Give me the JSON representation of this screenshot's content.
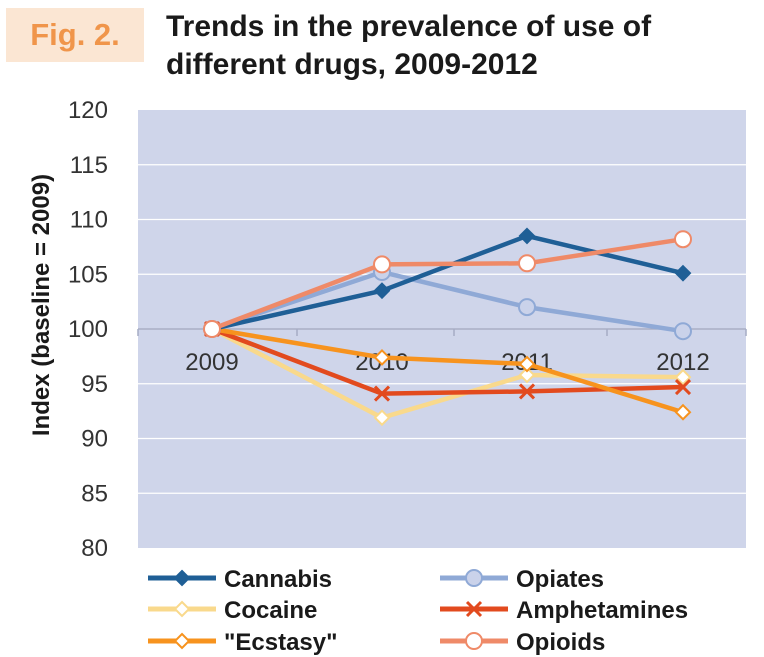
{
  "figure": {
    "label": "Fig. 2.",
    "title_line1": "Trends in the prevalence of use of",
    "title_line2": "different drugs, 2009-2012"
  },
  "chart_data": {
    "type": "line",
    "title": "Trends in the prevalence of use of different drugs, 2009-2012",
    "xlabel": "",
    "ylabel": "Index (baseline = 2009)",
    "categories": [
      "2009",
      "2010",
      "2011",
      "2012"
    ],
    "ylim": [
      80,
      120
    ],
    "yticks": [
      80,
      85,
      90,
      95,
      100,
      105,
      110,
      115,
      120
    ],
    "grid": true,
    "legend_position": "bottom",
    "series": [
      {
        "name": "Cannabis",
        "values": [
          100,
          103.5,
          108.5,
          105.1
        ],
        "color": "#1f5f96",
        "marker": "diamond"
      },
      {
        "name": "Opiates",
        "values": [
          100,
          105.2,
          102,
          99.8
        ],
        "color": "#8fa9d6",
        "marker": "circle"
      },
      {
        "name": "Cocaine",
        "values": [
          100,
          91.9,
          95.8,
          95.6
        ],
        "color": "#f9d98c",
        "marker": "diamond-open"
      },
      {
        "name": "Amphetamines",
        "values": [
          100,
          94.1,
          94.3,
          94.7
        ],
        "color": "#e24a1e",
        "marker": "x"
      },
      {
        "name": "\"Ecstasy\"",
        "values": [
          100,
          97.4,
          96.8,
          92.4
        ],
        "color": "#f7931e",
        "marker": "diamond-open"
      },
      {
        "name": "Opioids",
        "values": [
          100,
          105.9,
          106,
          108.2
        ],
        "color": "#ef8a68",
        "marker": "circle-open"
      }
    ]
  }
}
